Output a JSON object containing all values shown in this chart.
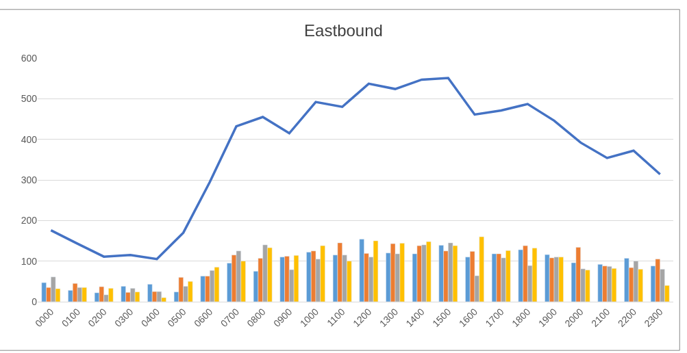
{
  "chart_data": {
    "type": "bar",
    "title": "Eastbound",
    "categories": [
      "0000",
      "0100",
      "0200",
      "0300",
      "0400",
      "0500",
      "0600",
      "0700",
      "0800",
      "0900",
      "1000",
      "1100",
      "1200",
      "1300",
      "1400",
      "1500",
      "1600",
      "1700",
      "1800",
      "1900",
      "2000",
      "2100",
      "2200",
      "2300"
    ],
    "series": [
      {
        "color": "#5b9bd5",
        "values": [
          47,
          28,
          22,
          38,
          43,
          24,
          63,
          95,
          75,
          110,
          122,
          115,
          154,
          120,
          118,
          139,
          110,
          118,
          128,
          116,
          96,
          92,
          107,
          88
        ]
      },
      {
        "color": "#ed7d31",
        "values": [
          35,
          45,
          37,
          23,
          25,
          60,
          63,
          115,
          107,
          112,
          125,
          145,
          119,
          143,
          138,
          125,
          124,
          118,
          138,
          108,
          134,
          88,
          84,
          105
        ]
      },
      {
        "color": "#a5a5a5",
        "values": [
          61,
          35,
          17,
          33,
          25,
          38,
          77,
          125,
          140,
          79,
          105,
          115,
          110,
          118,
          140,
          145,
          64,
          108,
          89,
          110,
          81,
          87,
          100,
          80
        ]
      },
      {
        "color": "#ffc000",
        "values": [
          32,
          35,
          33,
          24,
          10,
          50,
          85,
          100,
          133,
          114,
          138,
          100,
          150,
          144,
          148,
          138,
          160,
          126,
          132,
          110,
          78,
          82,
          80,
          40
        ]
      },
      {
        "type": "line",
        "color": "#4472c4",
        "values": [
          176,
          143,
          111,
          115,
          105,
          170,
          295,
          432,
          455,
          415,
          492,
          480,
          537,
          524,
          547,
          551,
          461,
          471,
          487,
          446,
          392,
          354,
          372,
          314
        ]
      }
    ],
    "ylim": [
      0,
      600
    ],
    "yticks": [
      0,
      100,
      200,
      300,
      400,
      500,
      600
    ],
    "grid": "y"
  }
}
